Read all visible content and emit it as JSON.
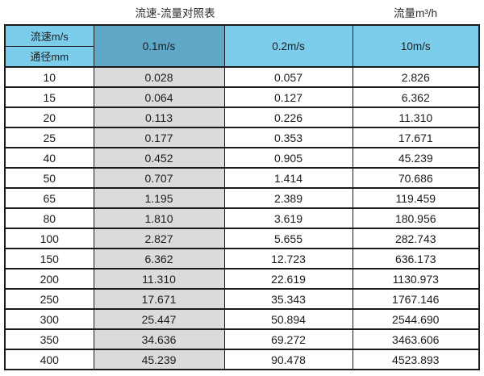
{
  "titles": {
    "left": "流速-流量对照表",
    "right": "流量m³/h"
  },
  "table": {
    "corner_top": "流速m/s",
    "corner_bottom": "通径mm",
    "columns": [
      "0.1m/s",
      "0.2m/s",
      "10m/s"
    ],
    "rows": [
      {
        "dn": "10",
        "v1": "0.028",
        "v2": "0.057",
        "v3": "2.826"
      },
      {
        "dn": "15",
        "v1": "0.064",
        "v2": "0.127",
        "v3": "6.362"
      },
      {
        "dn": "20",
        "v1": "0.113",
        "v2": "0.226",
        "v3": "11.310"
      },
      {
        "dn": "25",
        "v1": "0.177",
        "v2": "0.353",
        "v3": "17.671"
      },
      {
        "dn": "40",
        "v1": "0.452",
        "v2": "0.905",
        "v3": "45.239"
      },
      {
        "dn": "50",
        "v1": "0.707",
        "v2": "1.414",
        "v3": "70.686"
      },
      {
        "dn": "65",
        "v1": "1.195",
        "v2": "2.389",
        "v3": "119.459"
      },
      {
        "dn": "80",
        "v1": "1.810",
        "v2": "3.619",
        "v3": "180.956"
      },
      {
        "dn": "100",
        "v1": "2.827",
        "v2": "5.655",
        "v3": "282.743"
      },
      {
        "dn": "150",
        "v1": "6.362",
        "v2": "12.723",
        "v3": "636.173"
      },
      {
        "dn": "200",
        "v1": "11.310",
        "v2": "22.619",
        "v3": "1130.973"
      },
      {
        "dn": "250",
        "v1": "17.671",
        "v2": "35.343",
        "v3": "1767.146"
      },
      {
        "dn": "300",
        "v1": "25.447",
        "v2": "50.894",
        "v3": "2544.690"
      },
      {
        "dn": "350",
        "v1": "34.636",
        "v2": "69.272",
        "v3": "3463.606"
      },
      {
        "dn": "400",
        "v1": "45.239",
        "v2": "90.478",
        "v3": "4523.893"
      }
    ]
  },
  "chart_data": {
    "type": "table",
    "title": "流速-流量对照表",
    "unit_label": "流量m³/h",
    "row_header_label": "通径mm",
    "col_header_label": "流速m/s",
    "categories": [
      10,
      15,
      20,
      25,
      40,
      50,
      65,
      80,
      100,
      150,
      200,
      250,
      300,
      350,
      400
    ],
    "series": [
      {
        "name": "0.1m/s",
        "values": [
          0.028,
          0.064,
          0.113,
          0.177,
          0.452,
          0.707,
          1.195,
          1.81,
          2.827,
          6.362,
          11.31,
          17.671,
          25.447,
          34.636,
          45.239
        ]
      },
      {
        "name": "0.2m/s",
        "values": [
          0.057,
          0.127,
          0.226,
          0.353,
          0.905,
          1.414,
          2.389,
          3.619,
          5.655,
          12.723,
          22.619,
          35.343,
          50.894,
          69.272,
          90.478
        ]
      },
      {
        "name": "10m/s",
        "values": [
          2.826,
          6.362,
          11.31,
          17.671,
          45.239,
          70.686,
          119.459,
          180.956,
          282.743,
          636.173,
          1130.973,
          1767.146,
          2544.69,
          3463.606,
          4523.893
        ]
      }
    ]
  },
  "colors": {
    "header_blue": "#7CCDEC",
    "header_selected_blue": "#5FA8C8",
    "column_gray": "#DBDBDB",
    "border": "#1A1A1A"
  }
}
